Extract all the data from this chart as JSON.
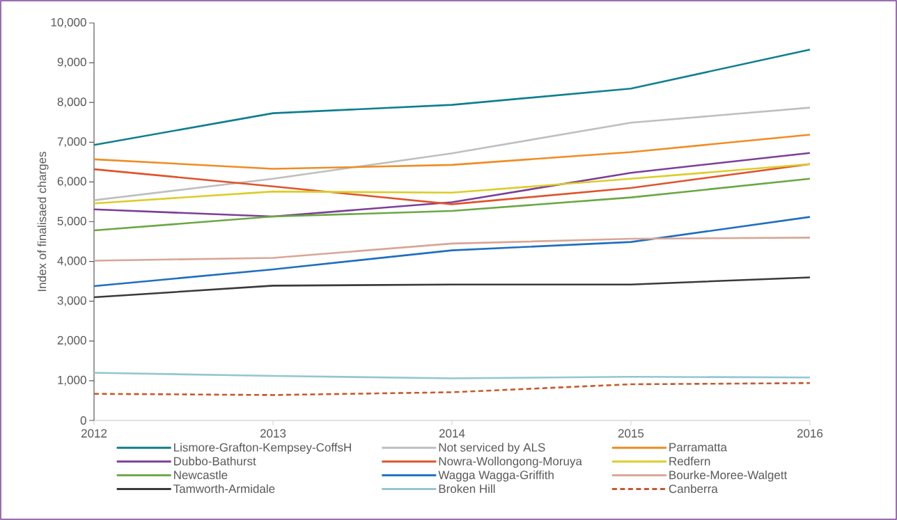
{
  "chart_data": {
    "type": "line",
    "ylabel": "Index of finalisaed charges",
    "x": [
      2012,
      2013,
      2014,
      2015,
      2016
    ],
    "xlim": [
      2012,
      2016
    ],
    "xticks": [
      2012,
      2013,
      2014,
      2015,
      2016
    ],
    "ylim": [
      0,
      10000
    ],
    "yticks": [
      0,
      {
        "value": 1000,
        "label": "1,000"
      },
      {
        "value": 2000,
        "label": "2,000"
      },
      {
        "value": 3000,
        "label": "3,000"
      },
      {
        "value": 4000,
        "label": "4,000"
      },
      {
        "value": 5000,
        "label": "5,000"
      },
      {
        "value": 6000,
        "label": "6,000"
      },
      {
        "value": 7000,
        "label": "7,000"
      },
      {
        "value": 8000,
        "label": "8,000"
      },
      {
        "value": 9000,
        "label": "9,000"
      },
      {
        "value": 10000,
        "label": "10,000"
      }
    ],
    "legend": "bottom",
    "line_style": "solid",
    "series": [
      {
        "name": "Lismore-Grafton-Kempsey-CoffsH",
        "color": "#0f7f8f",
        "values": [
          6930,
          7730,
          7940,
          8350,
          9330
        ]
      },
      {
        "name": "Not serviced by ALS",
        "color": "#bfbfbf",
        "values": [
          5540,
          6080,
          6720,
          7490,
          7870
        ]
      },
      {
        "name": "Parramatta",
        "color": "#f08c23",
        "values": [
          6570,
          6330,
          6430,
          6750,
          7190
        ]
      },
      {
        "name": "Dubbo-Bathurst",
        "color": "#7b3f98",
        "values": [
          5310,
          5130,
          5490,
          6230,
          6730
        ]
      },
      {
        "name": "Nowra-Wollongong-Moruya",
        "color": "#e0532a",
        "values": [
          6320,
          5890,
          5440,
          5850,
          6450
        ]
      },
      {
        "name": "Redfern",
        "color": "#dccd28",
        "values": [
          5460,
          5760,
          5730,
          6080,
          6450
        ]
      },
      {
        "name": "Newcastle",
        "color": "#6aa843",
        "values": [
          4780,
          5130,
          5270,
          5610,
          6080
        ]
      },
      {
        "name": "Wagga Wagga-Griffith",
        "color": "#1f6fbf",
        "values": [
          3380,
          3800,
          4280,
          4490,
          5120
        ]
      },
      {
        "name": "Bourke-Moree-Walgett",
        "color": "#d8a695",
        "values": [
          4020,
          4090,
          4450,
          4570,
          4600
        ]
      },
      {
        "name": "Tamworth-Armidale",
        "color": "#3a3a3a",
        "values": [
          3100,
          3390,
          3420,
          3420,
          3600
        ]
      },
      {
        "name": "Broken Hill",
        "color": "#93c6d0",
        "values": [
          1200,
          1120,
          1060,
          1100,
          1080
        ]
      },
      {
        "name": "Canberra",
        "color": "#c8582a",
        "line_style": "dashed",
        "values": [
          670,
          640,
          710,
          910,
          940
        ]
      }
    ]
  }
}
